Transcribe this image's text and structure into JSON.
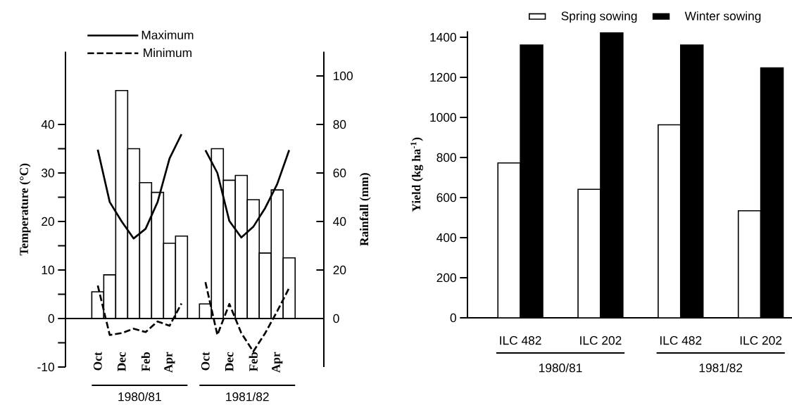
{
  "chart_data": [
    {
      "type": "bar",
      "ylabel": "Temperature (°C)",
      "y2label": "Rainfall (mm)",
      "categories": [
        "Oct",
        null,
        "Dec",
        null,
        "Feb",
        null,
        "Apr",
        null,
        null,
        "Oct",
        null,
        "Dec",
        null,
        "Feb",
        null,
        "Apr",
        null
      ],
      "series": [
        {
          "axis": "y2",
          "color": "#ffffff",
          "values": [
            11,
            18,
            94,
            70,
            56,
            52,
            31,
            34,
            null,
            6,
            70,
            57,
            59,
            49,
            27,
            53,
            25
          ]
        },
        {
          "name": "Maximum",
          "type": "line",
          "color": "#000000",
          "line_style": "solid",
          "values": [
            34.8,
            24,
            20,
            16.5,
            18.5,
            24,
            33,
            38,
            null,
            34.7,
            30,
            20.1,
            16.7,
            18.9,
            22.8,
            27.7,
            34.7
          ]
        },
        {
          "name": "Minimum",
          "type": "line",
          "color": "#000000",
          "line_style": "dashed",
          "values": [
            6.8,
            -3.4,
            -3,
            -2.1,
            -2.8,
            -0.6,
            -1.5,
            3.1,
            null,
            7.5,
            -3.4,
            3,
            -3,
            -6.8,
            -3,
            1.5,
            6.3
          ]
        }
      ],
      "ylim": [
        -10,
        55
      ],
      "yticks": [
        -10,
        0,
        10,
        20,
        30,
        40
      ],
      "y2lim": [
        -20,
        110
      ],
      "y2ticks": [
        0,
        20,
        40,
        60,
        80,
        100
      ],
      "legend": "top left",
      "annotations": [
        "1980/81",
        "1981/82"
      ]
    },
    {
      "type": "bar",
      "ylabel": "Yield (kg ha$^{-1}$)",
      "categories": [
        "ILC 482",
        "ILC 202",
        "ILC 482",
        "ILC 202"
      ],
      "series": [
        {
          "name": "Spring sowing",
          "color": "#ffffff",
          "values": [
            773,
            641,
            963,
            534
          ]
        },
        {
          "name": "Winter sowing",
          "color": "#000000",
          "values": [
            1361,
            1422,
            1361,
            1247
          ]
        }
      ],
      "ylim": [
        0,
        1430
      ],
      "yticks": [
        0,
        200,
        400,
        600,
        800,
        1000,
        1200,
        1400
      ],
      "legend": "top",
      "annotations": [
        "1980/81",
        "1981/82"
      ]
    }
  ]
}
